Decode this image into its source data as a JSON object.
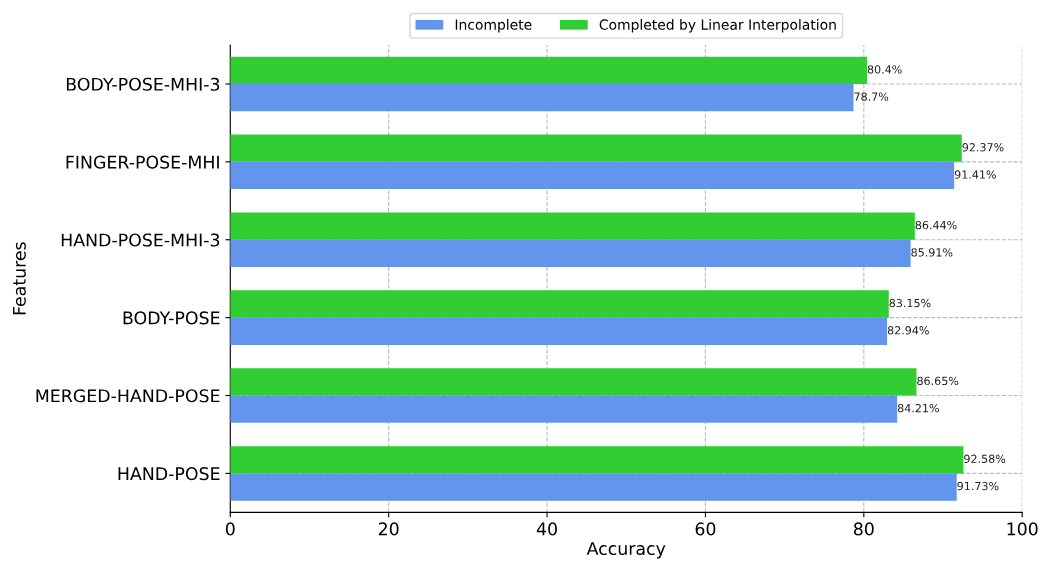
{
  "chart_data": {
    "type": "bar",
    "orientation": "horizontal",
    "xlabel": "Accuracy",
    "ylabel": "Features",
    "categories": [
      "BODY-POSE-MHI-3",
      "FINGER-POSE-MHI",
      "HAND-POSE-MHI-3",
      "BODY-POSE",
      "MERGED-HAND-POSE",
      "HAND-POSE"
    ],
    "series": [
      {
        "name": "Incomplete",
        "color": "#6495ed",
        "values": [
          78.7,
          91.41,
          85.91,
          82.94,
          84.21,
          91.73
        ],
        "value_labels": [
          "78.7%",
          "91.41%",
          "85.91%",
          "82.94%",
          "84.21%",
          "91.73%"
        ]
      },
      {
        "name": "Completed by Linear Interpolation",
        "color": "#32cd32",
        "values": [
          80.4,
          92.37,
          86.44,
          83.15,
          86.65,
          92.58
        ],
        "value_labels": [
          "80.4%",
          "92.37%",
          "86.44%",
          "83.15%",
          "86.65%",
          "92.58%"
        ]
      }
    ],
    "xlim": [
      0,
      100
    ],
    "xticks": [
      0,
      20,
      40,
      60,
      80,
      100
    ],
    "grid": true,
    "legend": "top"
  }
}
